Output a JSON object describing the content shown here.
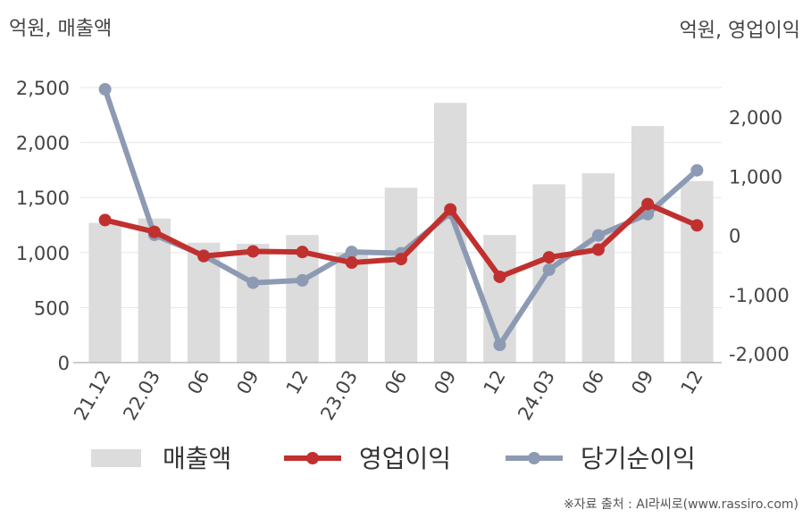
{
  "chart_data": {
    "type": "bar+line",
    "unit_left": "억원, 매출액",
    "unit_right": "억원, 영업이익",
    "categories": [
      "21.12",
      "22.03",
      "06",
      "09",
      "12",
      "23.03",
      "06",
      "09",
      "12",
      "24.03",
      "06",
      "09",
      "12"
    ],
    "left_axis": {
      "ylim": [
        0,
        2500
      ],
      "ticks": [
        "0",
        "500",
        "1,000",
        "1,500",
        "2,000",
        "2,500"
      ],
      "tick_values": [
        0,
        500,
        1000,
        1500,
        2000,
        2500
      ]
    },
    "right_axis": {
      "ylim": [
        -2150,
        2500
      ],
      "ticks": [
        "-2,000",
        "-1,000",
        "0",
        "1,000",
        "2,000"
      ],
      "tick_values": [
        -2000,
        -1000,
        0,
        1000,
        2000
      ]
    },
    "series": [
      {
        "name": "매출액",
        "kind": "bar",
        "axis": "left",
        "color": "#dcdcdc",
        "values": [
          1270,
          1310,
          1090,
          1080,
          1160,
          1000,
          1590,
          2360,
          1160,
          1620,
          1720,
          2150,
          1650
        ]
      },
      {
        "name": "영업이익",
        "kind": "line",
        "axis": "right",
        "color": "#c0302e",
        "values": [
          260,
          60,
          -350,
          -270,
          -280,
          -460,
          -400,
          440,
          -700,
          -370,
          -240,
          530,
          170
        ]
      },
      {
        "name": "당기순이익",
        "kind": "line",
        "axis": "right",
        "color": "#8d9ab3",
        "values": [
          2470,
          10,
          -340,
          -800,
          -760,
          -280,
          -300,
          380,
          -1850,
          -580,
          0,
          360,
          1100
        ]
      }
    ],
    "legend_position": "bottom",
    "grid": true
  },
  "source": "※자료 출처 : AI라씨로(www.rassiro.com)"
}
